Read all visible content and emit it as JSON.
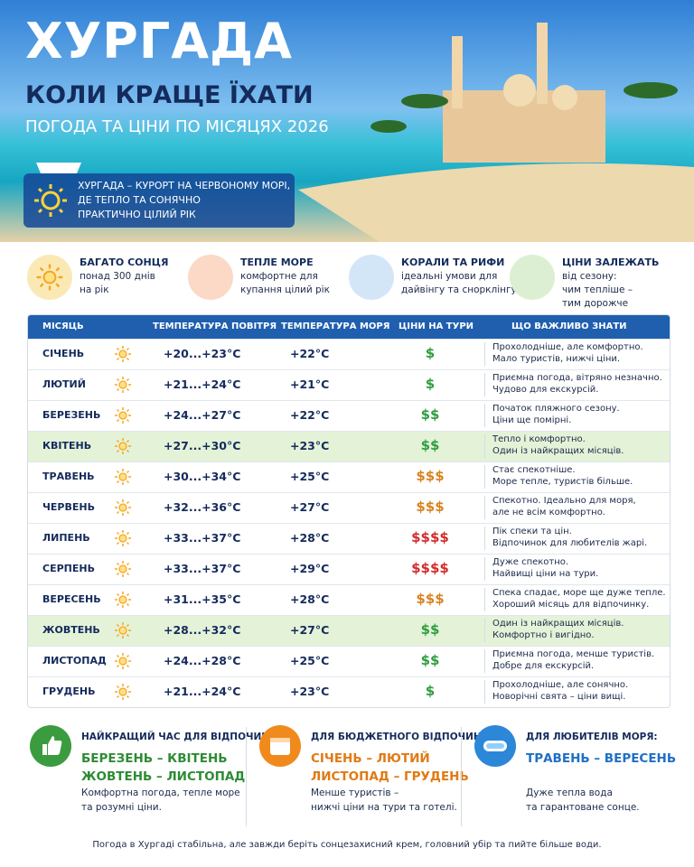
{
  "header": {
    "title": "ХУРГАДА",
    "subtitle": "КОЛИ КРАЩЕ ЇХАТИ",
    "subtitle2": "ПОГОДА ТА ЦІНИ ПО МІСЯЦЯХ 2026",
    "intro": [
      "ХУРГАДА – КУРОРТ НА ЧЕРВОНОМУ МОРІ,",
      "ДЕ ТЕПЛО ТА СОНЯЧНО",
      "ПРАКТИЧНО ЦІЛИЙ РІК"
    ]
  },
  "features": [
    {
      "title": "БАГАТО СОНЦЯ",
      "lines": [
        "понад 300 днів",
        "на рік"
      ],
      "color": "#fbe9b5"
    },
    {
      "title": "ТЕПЛЕ МОРЕ",
      "lines": [
        "комфортне для",
        "купання цілий рік"
      ],
      "color": "#fbd9c6"
    },
    {
      "title": "КОРАЛИ ТА РИФИ",
      "lines": [
        "ідеальні умови для",
        "дайвінгу та снорклінгу"
      ],
      "color": "#d3e6f7"
    },
    {
      "title": "ЦІНИ ЗАЛЕЖАТЬ",
      "lines": [
        "від сезону:",
        "чим тепліше –",
        "тим дорожче"
      ],
      "color": "#dcefd3"
    }
  ],
  "table": {
    "headers": [
      "МІСЯЦЬ",
      "ТЕМПЕРАТУРА ПОВІТРЯ",
      "ТЕМПЕРАТУРА МОРЯ",
      "ЦІНИ НА ТУРИ",
      "ЩО ВАЖЛИВО ЗНАТИ"
    ],
    "rows": [
      {
        "month": "СІЧЕНЬ",
        "air": "+20...+23°C",
        "sea": "+22°C",
        "price": "$",
        "price_color": "#2e9e3e",
        "highlight": false,
        "notes": [
          "Прохолодніше, але комфортно.",
          "Мало туристів, нижчі ціни."
        ]
      },
      {
        "month": "ЛЮТИЙ",
        "air": "+21...+24°C",
        "sea": "+21°C",
        "price": "$",
        "price_color": "#2e9e3e",
        "highlight": false,
        "notes": [
          "Приємна погода, вітряно незначно.",
          "Чудово для екскурсій."
        ]
      },
      {
        "month": "БЕРЕЗЕНЬ",
        "air": "+24...+27°C",
        "sea": "+22°C",
        "price": "$$",
        "price_color": "#2e9e3e",
        "highlight": false,
        "notes": [
          "Початок пляжного сезону.",
          "Ціни ще помірні."
        ]
      },
      {
        "month": "КВІТЕНЬ",
        "air": "+27...+30°C",
        "sea": "+23°C",
        "price": "$$",
        "price_color": "#2e9e3e",
        "highlight": true,
        "notes": [
          "Тепло і комфортно.",
          "Один із найкращих місяців."
        ]
      },
      {
        "month": "ТРАВЕНЬ",
        "air": "+30...+34°C",
        "sea": "+25°C",
        "price": "$$$",
        "price_color": "#d9821f",
        "highlight": false,
        "notes": [
          "Стає спекотніше.",
          "Море тепле, туристів більше."
        ]
      },
      {
        "month": "ЧЕРВЕНЬ",
        "air": "+32...+36°C",
        "sea": "+27°C",
        "price": "$$$",
        "price_color": "#d9821f",
        "highlight": false,
        "notes": [
          "Спекотно. Ідеально для моря,",
          "але не всім комфортно."
        ]
      },
      {
        "month": "ЛИПЕНЬ",
        "air": "+33...+37°C",
        "sea": "+28°C",
        "price": "$$$$",
        "price_color": "#d42a2a",
        "highlight": false,
        "notes": [
          "Пік спеки та цін.",
          "Відпочинок для любителів жарі."
        ]
      },
      {
        "month": "СЕРПЕНЬ",
        "air": "+33...+37°C",
        "sea": "+29°C",
        "price": "$$$$",
        "price_color": "#d42a2a",
        "highlight": false,
        "notes": [
          "Дуже спекотно.",
          "Найвищі ціни на тури."
        ]
      },
      {
        "month": "ВЕРЕСЕНЬ",
        "air": "+31...+35°C",
        "sea": "+28°C",
        "price": "$$$",
        "price_color": "#d9821f",
        "highlight": false,
        "notes": [
          "Спека спадає, море ще дуже тепле.",
          "Хороший місяць для відпочинку."
        ]
      },
      {
        "month": "ЖОВТЕНЬ",
        "air": "+28...+32°C",
        "sea": "+27°C",
        "price": "$$",
        "price_color": "#2e9e3e",
        "highlight": true,
        "notes": [
          "Один із найкращих місяців.",
          "Комфортно і вигідно."
        ]
      },
      {
        "month": "ЛИСТОПАД",
        "air": "+24...+28°C",
        "sea": "+25°C",
        "price": "$$",
        "price_color": "#2e9e3e",
        "highlight": false,
        "notes": [
          "Приємна погода, менше туристів.",
          "Добре для екскурсій."
        ]
      },
      {
        "month": "ГРУДЕНЬ",
        "air": "+21...+24°C",
        "sea": "+23°C",
        "price": "$",
        "price_color": "#2e9e3e",
        "highlight": false,
        "notes": [
          "Прохолодніше, але сонячно.",
          "Новорічні свята – ціни вищі."
        ]
      }
    ]
  },
  "tips": [
    {
      "title": "НАЙКРАЩИЙ ЧАС ДЛЯ ВІДПОЧИНКУ:",
      "color": "#2e8b34",
      "months": [
        "БЕРЕЗЕНЬ – КВІТЕНЬ",
        "ЖОВТЕНЬ – ЛИСТОПАД"
      ],
      "lines": [
        "Комфортна погода, тепле море",
        "та розумні ціни."
      ]
    },
    {
      "title": "ДЛЯ БЮДЖЕТНОГО ВІДПОЧИНКУ:",
      "color": "#e07a14",
      "months": [
        "СІЧЕНЬ – ЛЮТИЙ",
        "ЛИСТОПАД – ГРУДЕНЬ"
      ],
      "lines": [
        "Менше туристів –",
        "нижчі ціни на тури та готелі."
      ]
    },
    {
      "title": "ДЛЯ ЛЮБИТЕЛІВ МОРЯ:",
      "color": "#1f6fc4",
      "months": [
        "ТРАВЕНЬ – ВЕРЕСЕНЬ"
      ],
      "lines": [
        "Дуже тепла вода",
        "та гарантоване сонце."
      ]
    }
  ],
  "footer": "Погода в Хургаді стабільна, але завжди беріть сонцезахисний крем, головний убір та пийте більше води."
}
